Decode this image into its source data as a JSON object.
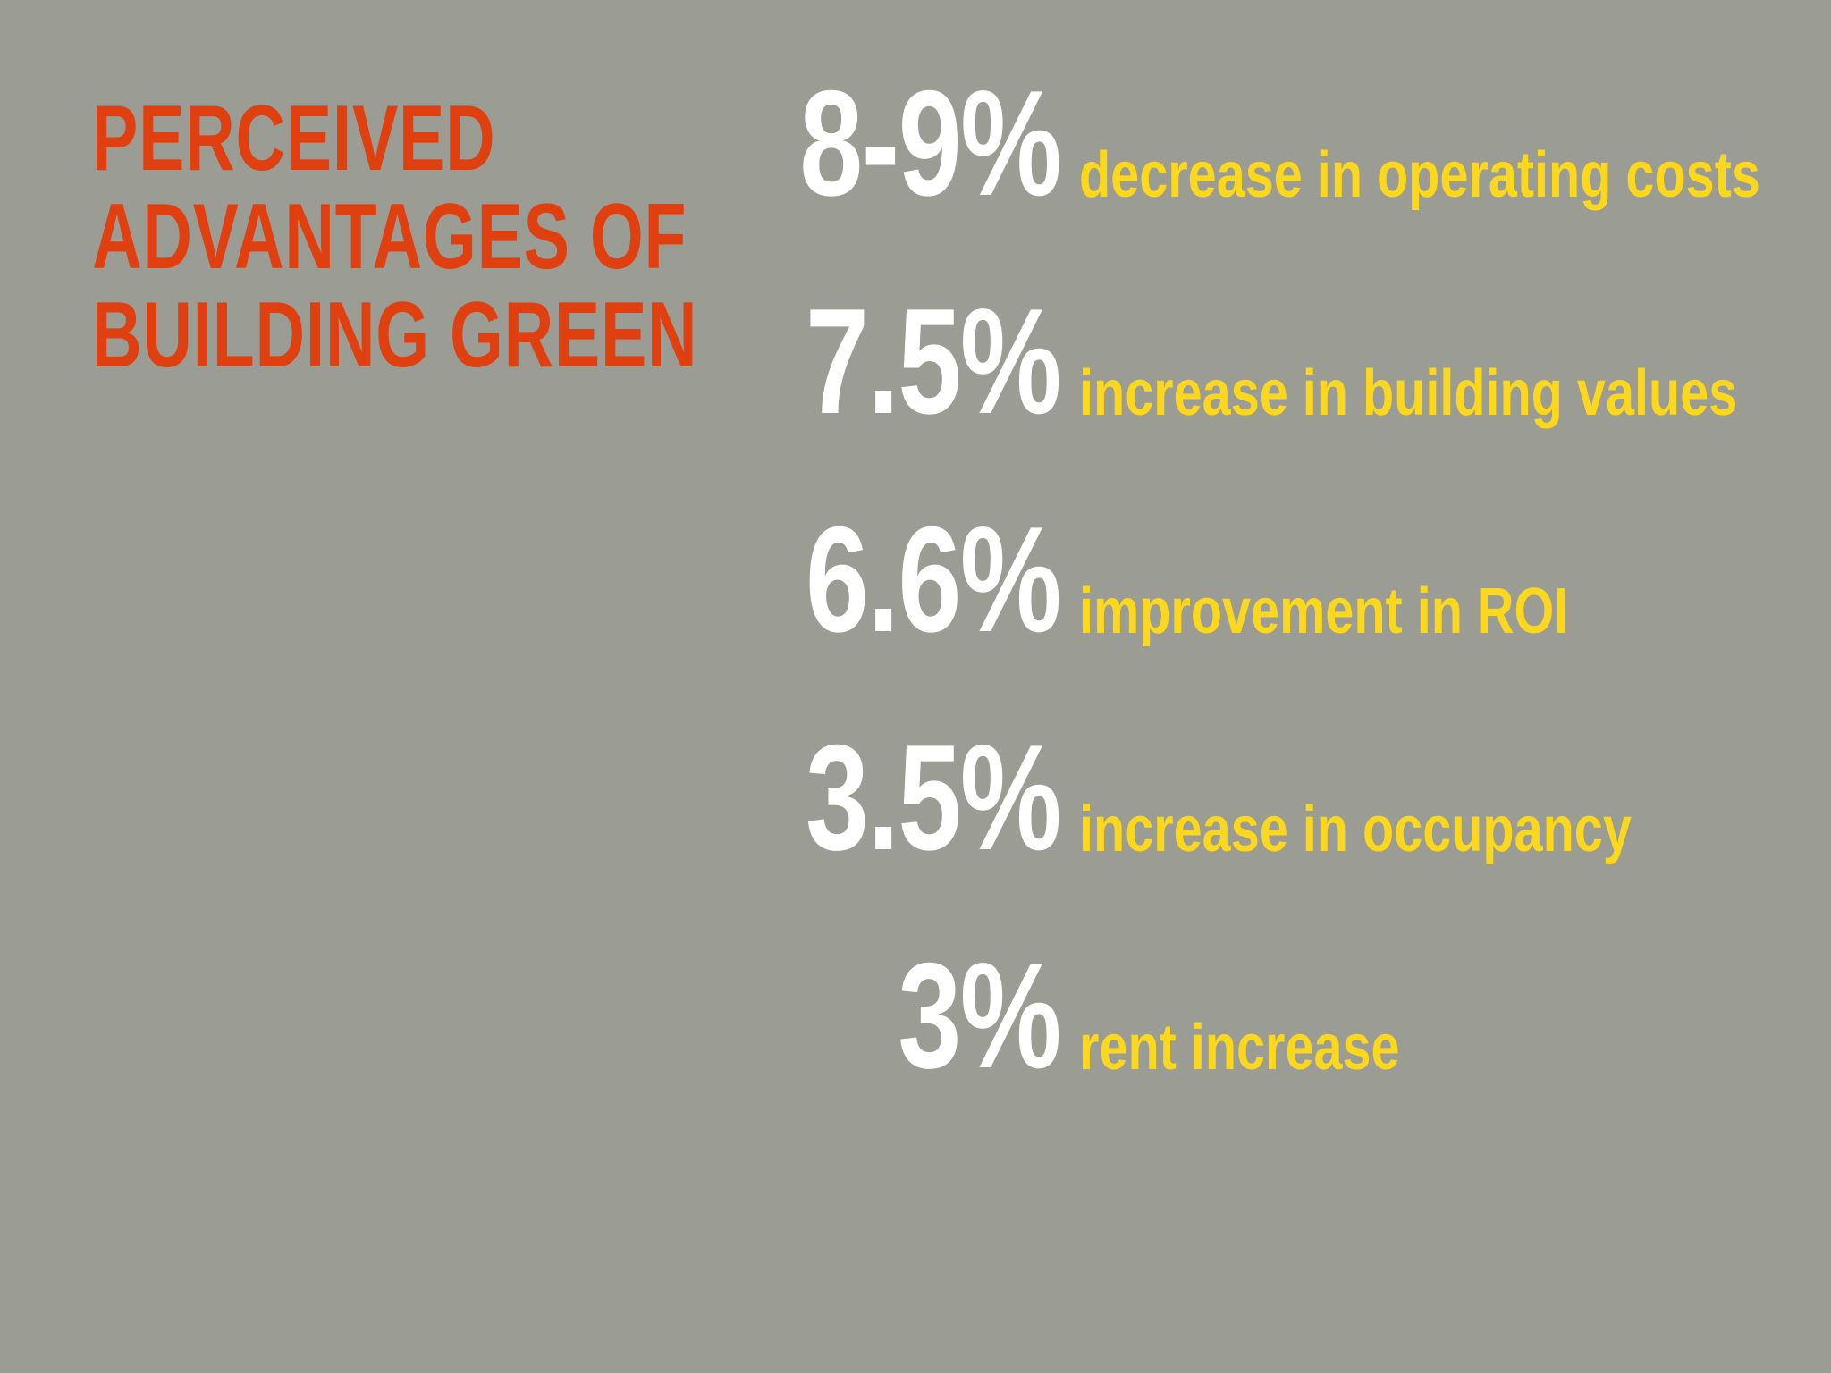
{
  "colors": {
    "background": "#9b9c94",
    "title": "#e0400f",
    "value": "#ffffff",
    "label": "#fbd81e"
  },
  "title": {
    "lines": [
      "PERCEIVED",
      "ADVANTAGES OF",
      "BUILDING GREEN"
    ]
  },
  "stats": [
    {
      "value": "8-9%",
      "label": "decrease in operating costs"
    },
    {
      "value": "7.5%",
      "label": "increase in building values"
    },
    {
      "value": "6.6%",
      "label": "improvement in ROI"
    },
    {
      "value": "3.5%",
      "label": "increase in occupancy"
    },
    {
      "value": "3%",
      "label": "rent increase"
    }
  ]
}
